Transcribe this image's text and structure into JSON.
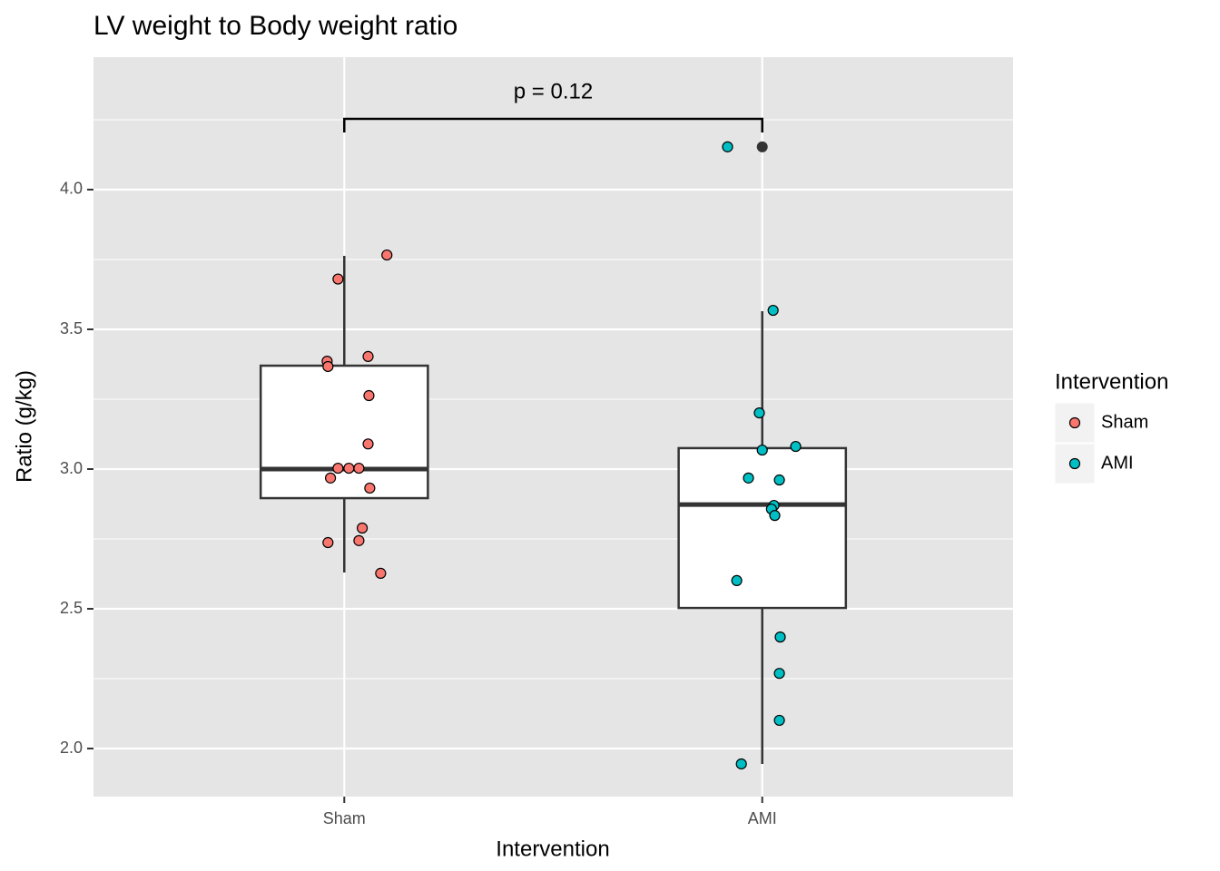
{
  "chart_data": {
    "type": "box",
    "title": "LV weight to Body weight ratio",
    "x_label": "Intervention",
    "y_label": "Ratio (g/kg)",
    "categories": [
      "Sham",
      "AMI"
    ],
    "ylim": [
      1.828,
      4.474
    ],
    "yticks": [
      {
        "value": 2,
        "label": "2.0"
      },
      2.5,
      {
        "value": 3,
        "label": "3.0"
      },
      3.5,
      {
        "value": 4,
        "label": "4.0"
      }
    ],
    "minor_yticks": [
      2.25,
      2.75,
      3.25,
      3.75,
      4.25
    ],
    "grid": true,
    "boxes": [
      {
        "whisker_low": 2.63,
        "q1": 2.896,
        "median": 3.0,
        "q3": 3.37,
        "whisker_high": 3.763,
        "outliers": []
      },
      {
        "whisker_low": 1.945,
        "q1": 2.503,
        "median": 2.873,
        "q3": 3.075,
        "whisker_high": 3.565,
        "outliers": [
          4.153
        ]
      }
    ],
    "series": [
      {
        "name": "Sham",
        "color": "#F8766D",
        "x": [
          1.102,
          0.985,
          0.959,
          0.961,
          1.057,
          1.059,
          1.057,
          0.985,
          1.011,
          1.035,
          0.967,
          1.061,
          1.043,
          0.961,
          1.035,
          1.087
        ],
        "values": [
          3.766,
          3.68,
          3.386,
          3.367,
          3.403,
          3.263,
          3.09,
          3.003,
          3.003,
          3.003,
          2.968,
          2.932,
          2.789,
          2.737,
          2.744,
          2.627
        ]
      },
      {
        "name": "AMI",
        "color": "#00BFC4",
        "x": [
          1.917,
          2.026,
          1.993,
          2.0,
          2.08,
          1.967,
          2.041,
          2.028,
          2.022,
          2.03,
          1.939,
          2.043,
          2.041,
          2.041,
          1.95
        ],
        "values": [
          4.153,
          3.568,
          3.201,
          3.068,
          3.081,
          2.968,
          2.961,
          2.87,
          2.857,
          2.834,
          2.601,
          2.399,
          2.269,
          2.101,
          1.945
        ]
      }
    ],
    "annotation": "p = 0.12",
    "legend_title": "Intervention",
    "legend_position": "right"
  }
}
